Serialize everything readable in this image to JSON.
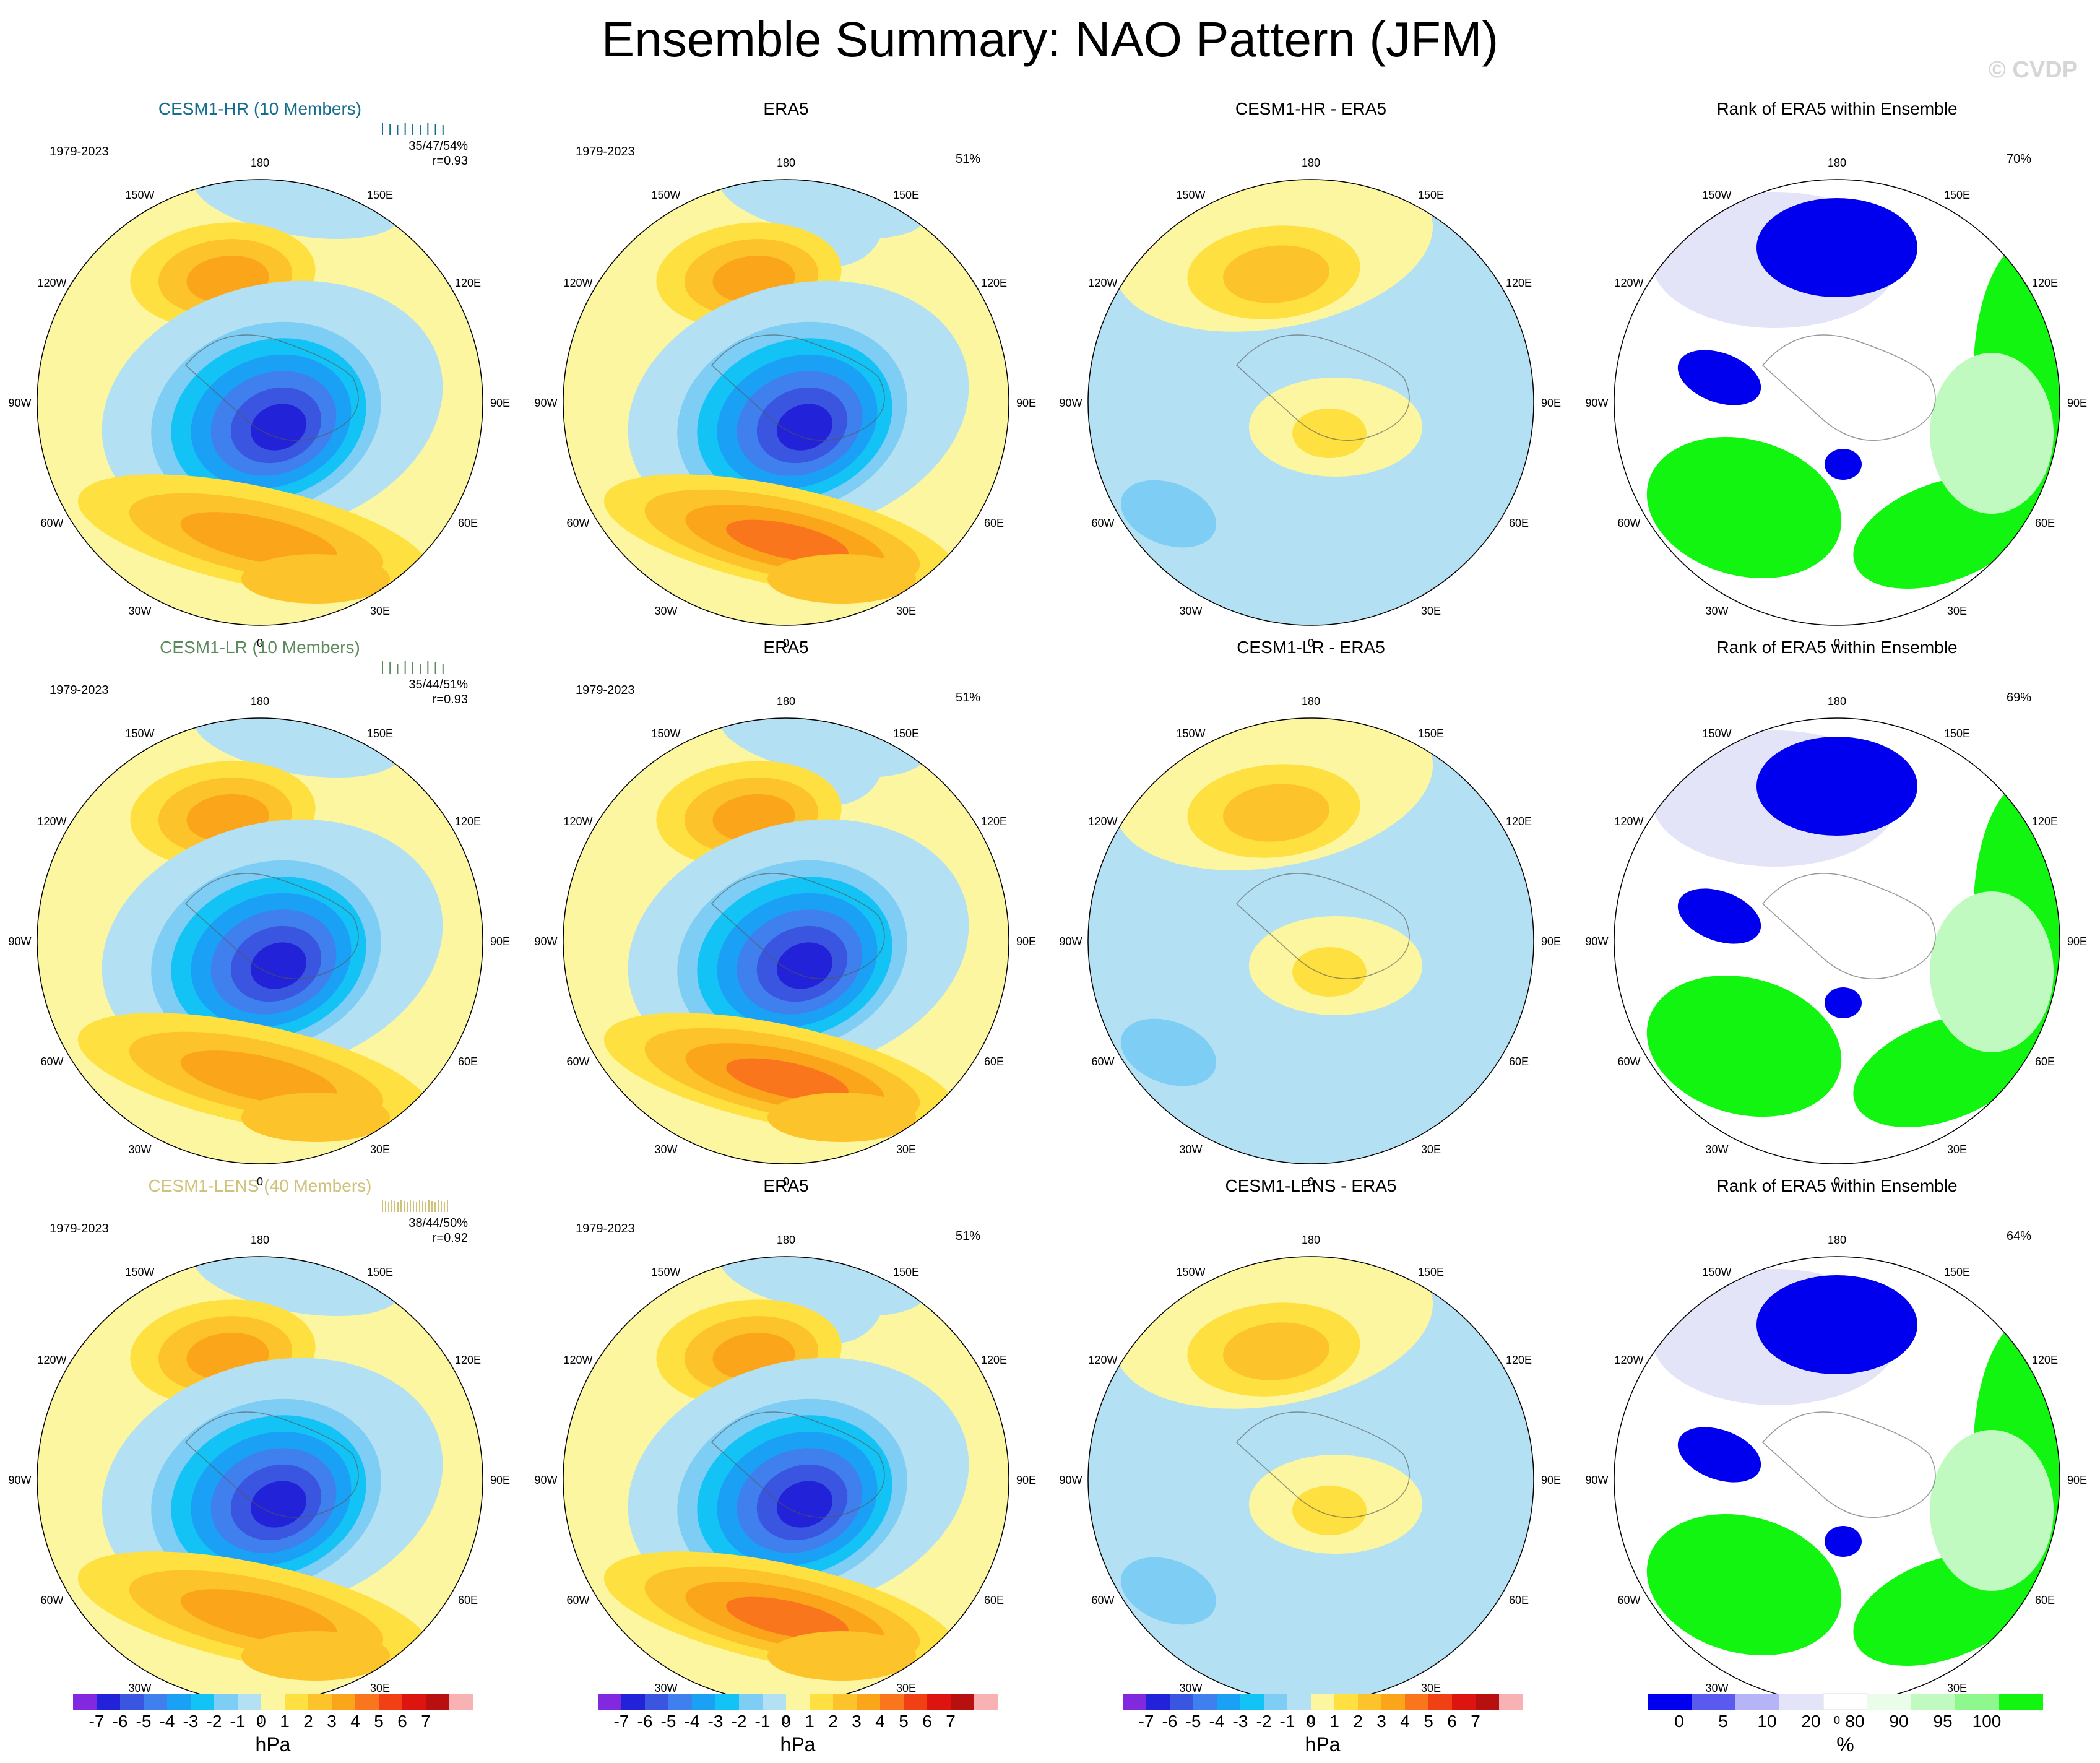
{
  "title": "Ensemble Summary: NAO Pattern (JFM)",
  "copyright": "© CVDP",
  "colors": {
    "diverging": [
      "#8229e0",
      "#2222d8",
      "#3a55e0",
      "#3f7fee",
      "#1aa0f5",
      "#14c3f5",
      "#7dcdf5",
      "#b4e0f3",
      "#fdf6a0",
      "#fee040",
      "#fdc32a",
      "#fba51a",
      "#f9761c",
      "#f04014",
      "#dd1410",
      "#b81010",
      "#f9b2b4"
    ],
    "rank": [
      "#0000ee",
      "#5a5aef",
      "#b4b4f6",
      "#e4e4f9",
      "#ffffff",
      "#e9fde9",
      "#c0fac0",
      "#8ef88e",
      "#11f511"
    ]
  },
  "longitude_labels": [
    "180",
    "150E",
    "120E",
    "90E",
    "60E",
    "30E",
    "0",
    "30W",
    "60W",
    "90W",
    "120W",
    "150W"
  ],
  "rows": [
    {
      "model": "CESM1-HR (10 Members)",
      "model_color": "#166d8e",
      "period": "1979-2023",
      "spread": "35/47/54%",
      "corr": "r=0.93",
      "era5": "ERA5",
      "era5_pct": "51%",
      "diff_title": "CESM1-HR - ERA5",
      "rank_title": "Rank of ERA5 within Ensemble",
      "rank_pct": "70%"
    },
    {
      "model": "CESM1-LR (10 Members)",
      "model_color": "#5b8a5b",
      "period": "1979-2023",
      "spread": "35/44/51%",
      "corr": "r=0.93",
      "era5": "ERA5",
      "era5_pct": "51%",
      "diff_title": "CESM1-LR - ERA5",
      "rank_title": "Rank of ERA5 within Ensemble",
      "rank_pct": "69%"
    },
    {
      "model": "CESM1-LENS (40 Members)",
      "model_color": "#d0c27a",
      "period": "1979-2023",
      "spread": "38/44/50%",
      "corr": "r=0.92",
      "era5": "ERA5",
      "era5_pct": "51%",
      "diff_title": "CESM1-LENS - ERA5",
      "rank_title": "Rank of ERA5 within Ensemble",
      "rank_pct": "64%"
    }
  ],
  "chart_data": {
    "type": "heatmap",
    "projection": "polar stereographic, Northern Hemisphere",
    "variable": "NAO pattern (sea level pressure regression)",
    "units": "hPa",
    "contour_levels": [
      -7,
      -6,
      -5,
      -4,
      -3,
      -2,
      -1,
      0,
      1,
      2,
      3,
      4,
      5,
      6,
      7
    ],
    "colorbar_labels": [
      "-7",
      "-6",
      "-5",
      "-4",
      "-3",
      "-2",
      "-1",
      "0",
      "1",
      "2",
      "3",
      "4",
      "5",
      "6",
      "7"
    ],
    "rank_units": "%",
    "rank_levels": [
      0,
      5,
      10,
      20,
      80,
      90,
      95,
      100
    ],
    "rank_labels": [
      "0",
      "5",
      "10",
      "20",
      "80",
      "90",
      "95",
      "100"
    ],
    "panels": [
      {
        "row": 1,
        "col": 1,
        "title": "CESM1-HR (10 Members)",
        "pct_explained": [
          35,
          47,
          54
        ],
        "r": 0.93
      },
      {
        "row": 1,
        "col": 2,
        "title": "ERA5",
        "pct_explained": 51
      },
      {
        "row": 1,
        "col": 3,
        "title": "CESM1-HR - ERA5"
      },
      {
        "row": 1,
        "col": 4,
        "title": "Rank of ERA5 within Ensemble",
        "pct": 70
      },
      {
        "row": 2,
        "col": 1,
        "title": "CESM1-LR (10 Members)",
        "pct_explained": [
          35,
          44,
          51
        ],
        "r": 0.93
      },
      {
        "row": 2,
        "col": 2,
        "title": "ERA5",
        "pct_explained": 51
      },
      {
        "row": 2,
        "col": 3,
        "title": "CESM1-LR - ERA5"
      },
      {
        "row": 2,
        "col": 4,
        "title": "Rank of ERA5 within Ensemble",
        "pct": 69
      },
      {
        "row": 3,
        "col": 1,
        "title": "CESM1-LENS (40 Members)",
        "pct_explained": [
          38,
          44,
          50
        ],
        "r": 0.92
      },
      {
        "row": 3,
        "col": 2,
        "title": "ERA5",
        "pct_explained": 51
      },
      {
        "row": 3,
        "col": 3,
        "title": "CESM1-LENS - ERA5"
      },
      {
        "row": 3,
        "col": 4,
        "title": "Rank of ERA5 within Ensemble",
        "pct": 64
      }
    ]
  }
}
